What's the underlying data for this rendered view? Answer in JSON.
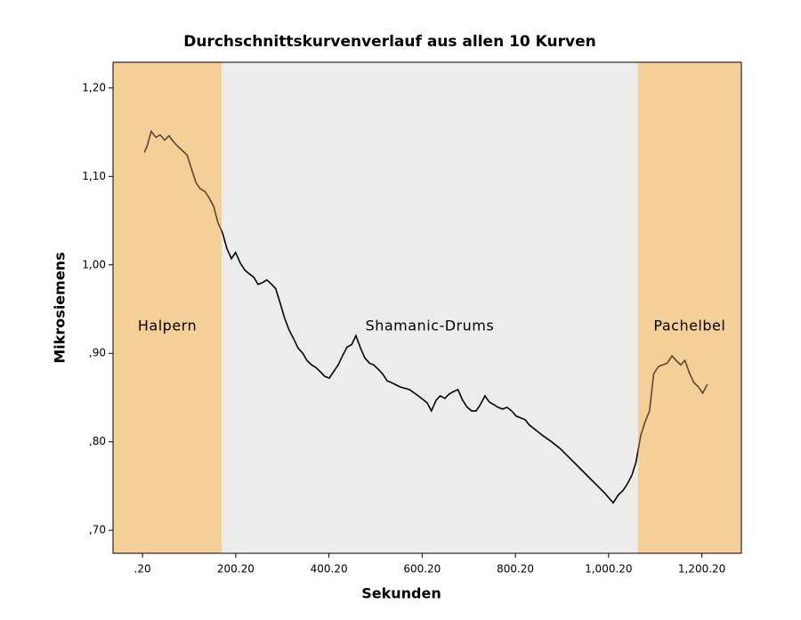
{
  "chart_data": {
    "type": "line",
    "title": "Durchschnittskurvenverlauf aus allen 10 Kurven",
    "xlabel": "Sekunden",
    "ylabel": "Mikrosiemens",
    "xlim": [
      -63,
      1285
    ],
    "ylim": [
      0.674,
      1.229
    ],
    "xticks": [
      {
        "value": 0.2,
        "label": ".20"
      },
      {
        "value": 200.2,
        "label": "200.20"
      },
      {
        "value": 400.2,
        "label": "400.20"
      },
      {
        "value": 600.2,
        "label": "600.20"
      },
      {
        "value": 800.2,
        "label": "800.20"
      },
      {
        "value": 1000.2,
        "label": "1,000.20"
      },
      {
        "value": 1200.2,
        "label": "1,200.20"
      }
    ],
    "yticks": [
      {
        "value": 0.7,
        "label": ",70"
      },
      {
        "value": 0.8,
        "label": ",80"
      },
      {
        "value": 0.9,
        "label": ",90"
      },
      {
        "value": 1.0,
        "label": "1,00"
      },
      {
        "value": 1.1,
        "label": "1,10"
      },
      {
        "value": 1.2,
        "label": "1,20"
      }
    ],
    "regions": [
      {
        "name": "Halpern",
        "start": -63,
        "end": 170,
        "color": "#f5cf98"
      },
      {
        "name": "Shamanic-Drums",
        "start": 170,
        "end": 1063,
        "color": "#ececec"
      },
      {
        "name": "Pachelbel",
        "start": 1063,
        "end": 1285,
        "color": "#f5cf98"
      }
    ],
    "color": "#000000",
    "x": [
      4,
      10,
      19,
      29,
      38,
      48,
      57,
      67,
      76,
      86,
      96,
      105,
      115,
      124,
      134,
      143,
      153,
      162,
      172,
      181,
      191,
      200,
      210,
      220,
      229,
      239,
      248,
      258,
      267,
      277,
      286,
      296,
      305,
      315,
      325,
      334,
      344,
      353,
      363,
      372,
      382,
      391,
      401,
      410,
      420,
      429,
      439,
      449,
      458,
      468,
      477,
      487,
      496,
      506,
      515,
      525,
      534,
      553,
      573,
      592,
      611,
      620,
      630,
      639,
      649,
      658,
      668,
      677,
      687,
      697,
      706,
      716,
      725,
      735,
      744,
      754,
      763,
      773,
      782,
      792,
      802,
      821,
      830,
      840,
      859,
      878,
      897,
      916,
      935,
      954,
      973,
      992,
      1010,
      1021,
      1031,
      1040,
      1050,
      1059,
      1069,
      1078,
      1088,
      1097,
      1107,
      1116,
      1126,
      1136,
      1145,
      1155,
      1164,
      1174,
      1183,
      1193,
      1202,
      1212
    ],
    "values": [
      1.127,
      1.134,
      1.151,
      1.144,
      1.147,
      1.141,
      1.146,
      1.139,
      1.134,
      1.129,
      1.124,
      1.109,
      1.093,
      1.086,
      1.083,
      1.076,
      1.066,
      1.048,
      1.036,
      1.019,
      1.007,
      1.014,
      1.002,
      0.994,
      0.99,
      0.986,
      0.978,
      0.98,
      0.983,
      0.978,
      0.973,
      0.956,
      0.94,
      0.926,
      0.916,
      0.906,
      0.9,
      0.892,
      0.887,
      0.884,
      0.879,
      0.874,
      0.872,
      0.879,
      0.887,
      0.897,
      0.907,
      0.91,
      0.92,
      0.906,
      0.895,
      0.889,
      0.887,
      0.882,
      0.877,
      0.869,
      0.867,
      0.862,
      0.859,
      0.852,
      0.844,
      0.835,
      0.847,
      0.852,
      0.849,
      0.854,
      0.857,
      0.859,
      0.847,
      0.839,
      0.835,
      0.835,
      0.842,
      0.852,
      0.845,
      0.842,
      0.839,
      0.837,
      0.839,
      0.835,
      0.829,
      0.825,
      0.819,
      0.815,
      0.807,
      0.8,
      0.792,
      0.782,
      0.772,
      0.762,
      0.752,
      0.742,
      0.731,
      0.74,
      0.745,
      0.752,
      0.762,
      0.777,
      0.807,
      0.822,
      0.835,
      0.877,
      0.885,
      0.887,
      0.889,
      0.897,
      0.892,
      0.887,
      0.892,
      0.877,
      0.867,
      0.862,
      0.855,
      0.865
    ]
  }
}
